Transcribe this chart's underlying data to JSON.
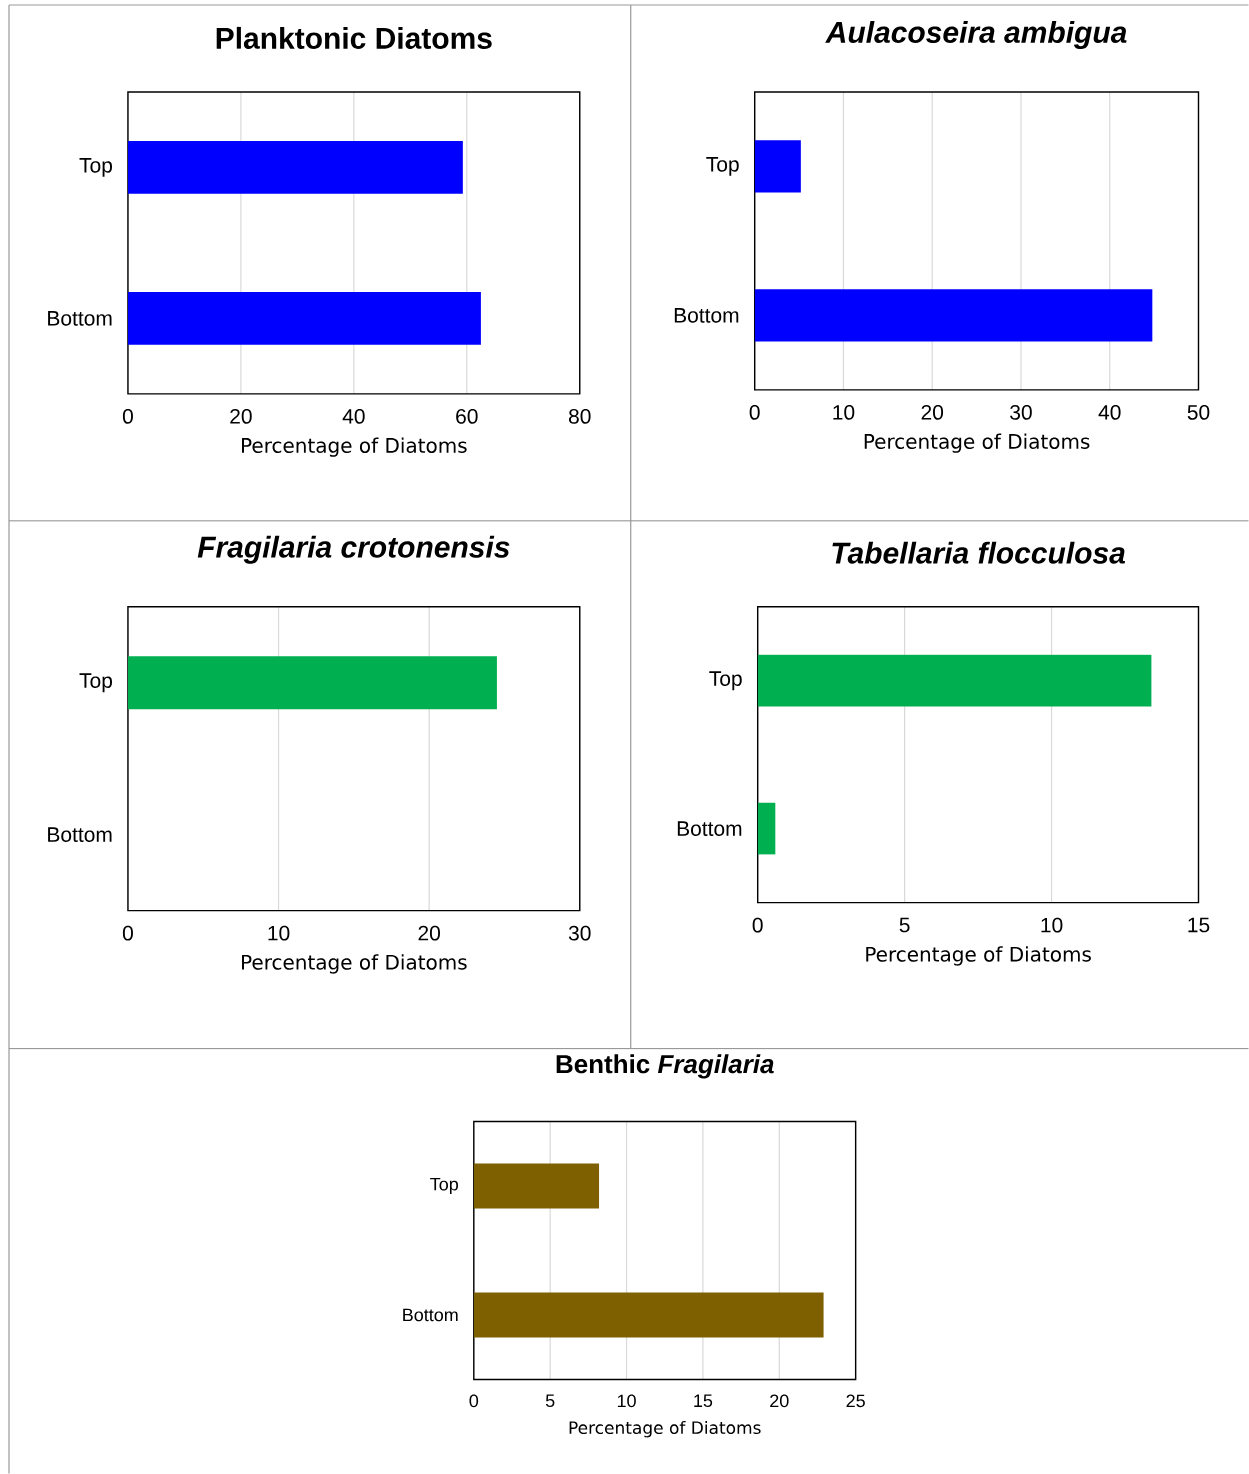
{
  "chart_data": [
    {
      "type": "bar",
      "orientation": "horizontal",
      "title": "Planktonic Diatoms",
      "xlabel": "Percentage of Diatoms",
      "categories": [
        "Top",
        "Bottom"
      ],
      "values": [
        59.3,
        62.5
      ],
      "color": "#0000ff",
      "xlim": [
        0,
        80
      ],
      "xticks": [
        0,
        20,
        40,
        60,
        80
      ],
      "grid": "x"
    },
    {
      "type": "bar",
      "orientation": "horizontal",
      "title": "Aulacoseira ambigua",
      "xlabel": "Percentage of Diatoms",
      "categories": [
        "Top",
        "Bottom"
      ],
      "values": [
        5.2,
        44.8
      ],
      "color": "#0000ff",
      "xlim": [
        0,
        50
      ],
      "xticks": [
        0,
        10,
        20,
        30,
        40,
        50
      ],
      "grid": "x"
    },
    {
      "type": "bar",
      "orientation": "horizontal",
      "title": "Fragilaria crotonensis",
      "xlabel": "Percentage of Diatoms",
      "categories": [
        "Top",
        "Bottom"
      ],
      "values": [
        24.5,
        0
      ],
      "color": "#00b050",
      "xlim": [
        0,
        30
      ],
      "xticks": [
        0,
        10,
        20,
        30
      ],
      "grid": "x"
    },
    {
      "type": "bar",
      "orientation": "horizontal",
      "title": "Tabellaria flocculosa",
      "xlabel": "Percentage of Diatoms",
      "categories": [
        "Top",
        "Bottom"
      ],
      "values": [
        13.4,
        0.6
      ],
      "color": "#00b050",
      "xlim": [
        0,
        15
      ],
      "xticks": [
        0,
        5,
        10,
        15
      ],
      "grid": "x"
    },
    {
      "type": "bar",
      "orientation": "horizontal",
      "title": "Benthic *Fragilaria*",
      "xlabel": "Percentage of Diatoms",
      "categories": [
        "Top",
        "Bottom"
      ],
      "values": [
        8.2,
        22.9
      ],
      "color": "#7f6000",
      "xlim": [
        0,
        25
      ],
      "xticks": [
        0,
        5,
        10,
        15,
        20,
        25
      ],
      "grid": "x"
    }
  ]
}
